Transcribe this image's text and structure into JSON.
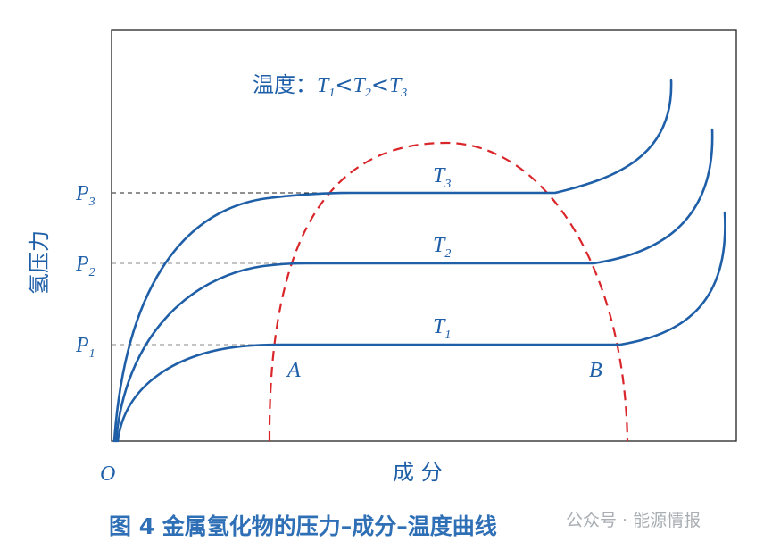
{
  "legend": {
    "prefix": "温度：",
    "symbol": "T",
    "subs": [
      "1",
      "2",
      "3"
    ],
    "sep": "<"
  },
  "y_axis_label": "氢压力",
  "x_axis_label": "成 分",
  "origin_label": "O",
  "pressure_labels": [
    {
      "main": "P",
      "sub": "3"
    },
    {
      "main": "P",
      "sub": "2"
    },
    {
      "main": "P",
      "sub": "1"
    }
  ],
  "curve_labels": [
    {
      "main": "T",
      "sub": "3"
    },
    {
      "main": "T",
      "sub": "2"
    },
    {
      "main": "T",
      "sub": "1"
    }
  ],
  "point_labels": {
    "a": "A",
    "b": "B"
  },
  "caption": "图 4  金属氢化物的压力–成分–温度曲线",
  "watermark": "公众号 · 能源情报",
  "colors": {
    "curve": "#1f5fa8",
    "dome": "#d9262b",
    "text": "#1f5fa8",
    "dash_guides": "#8a8a8a"
  }
}
